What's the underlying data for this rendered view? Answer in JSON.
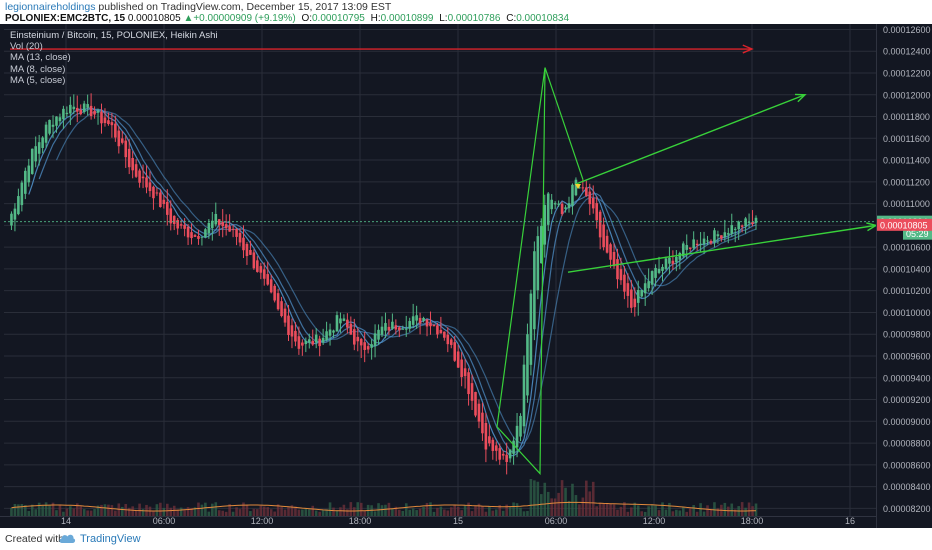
{
  "header": {
    "author": "legionnaireholdings",
    "published_text": " published on TradingView.com, December 15, 2017 13:09 EST",
    "symbol": "POLONIEX:EMC2BTC, 15",
    "last": "0.00010805",
    "up_arrow": "▲",
    "change": "+0.00000909 (+9.19%)",
    "o_label": "O:",
    "o_val": "0.00010795",
    "h_label": "H:",
    "h_val": "0.00010899",
    "l_label": "L:",
    "l_val": "0.00010786",
    "c_label": "C:",
    "c_val": "0.00010834"
  },
  "legend": {
    "title": "Einsteinium / Bitcoin, 15, POLONIEX, Heikin Ashi",
    "vol": "Vol (20)",
    "ma13": "MA (13, close)",
    "ma8": "MA (8, close)",
    "ma5": "MA (5, close)"
  },
  "footer": {
    "created_with": "Created with",
    "brand": "TradingView"
  },
  "colors": {
    "background": "#131722",
    "up": "#53b987",
    "down": "#eb4d5c",
    "ma": "#4f8fc7",
    "vol_ma": "#e38a3c",
    "grid": "#2a2e39",
    "annotation_green": "#38d13a",
    "annotation_red": "#d9232b",
    "marker": "#f5d130"
  },
  "chart_data": {
    "type": "candlestick",
    "style": "Heikin Ashi",
    "title": "Einsteinium / Bitcoin, 15, POLONIEX, Heikin Ashi",
    "x_tick_labels": [
      "14",
      "06:00",
      "12:00",
      "18:00",
      "15",
      "06:00",
      "12:00",
      "18:00",
      "16"
    ],
    "y_tick_labels": [
      "0.00012600",
      "0.00012400",
      "0.00012200",
      "0.00012000",
      "0.00011800",
      "0.00011600",
      "0.00011400",
      "0.00011200",
      "0.00011000",
      "0.00010800",
      "0.00010600",
      "0.00010400",
      "0.00010200",
      "0.00010000",
      "0.00009800",
      "0.00009600",
      "0.00009400",
      "0.00009200",
      "0.00009000",
      "0.00008800",
      "0.00008600",
      "0.00008400",
      "0.00008200"
    ],
    "ylim": [
      8.13e-05,
      0.0001265
    ],
    "price_label_last": "0.00010834",
    "price_label_countdown": "05:29",
    "price_label_close": "0.00010805",
    "series": [
      {
        "name": "MA (13, close)"
      },
      {
        "name": "MA (8, close)"
      },
      {
        "name": "MA (5, close)"
      },
      {
        "name": "Vol (20)"
      }
    ],
    "approx_close_path": [
      [
        0,
        0.000108
      ],
      [
        6,
        0.000114
      ],
      [
        12,
        0.0001175
      ],
      [
        18,
        0.000119
      ],
      [
        24,
        0.0001185
      ],
      [
        30,
        0.000117
      ],
      [
        36,
        0.000113
      ],
      [
        42,
        0.000111
      ],
      [
        48,
        0.000108
      ],
      [
        54,
        0.000107
      ],
      [
        60,
        0.0001085
      ],
      [
        66,
        0.000107
      ],
      [
        72,
        0.000104
      ],
      [
        78,
        0.0001
      ],
      [
        84,
        9.7e-05
      ],
      [
        90,
        9.75e-05
      ],
      [
        96,
        9.95e-05
      ],
      [
        102,
        9.65e-05
      ],
      [
        108,
        9.85e-05
      ],
      [
        114,
        9.9e-05
      ],
      [
        120,
        9.95e-05
      ],
      [
        126,
        9.8e-05
      ],
      [
        132,
        9.4e-05
      ],
      [
        138,
        8.8e-05
      ],
      [
        144,
        8.6e-05
      ],
      [
        148,
        9.1e-05
      ],
      [
        152,
        0.000106
      ],
      [
        156,
        0.000111
      ],
      [
        160,
        0.000109
      ],
      [
        164,
        0.000112
      ],
      [
        168,
        0.00011
      ],
      [
        172,
        0.000106
      ],
      [
        176,
        0.000103
      ],
      [
        180,
        0.0001005
      ],
      [
        186,
        0.0001035
      ],
      [
        192,
        0.000105
      ],
      [
        198,
        0.0001065
      ],
      [
        204,
        0.000107
      ],
      [
        210,
        0.000108
      ],
      [
        216,
        0.0001083
      ]
    ]
  }
}
